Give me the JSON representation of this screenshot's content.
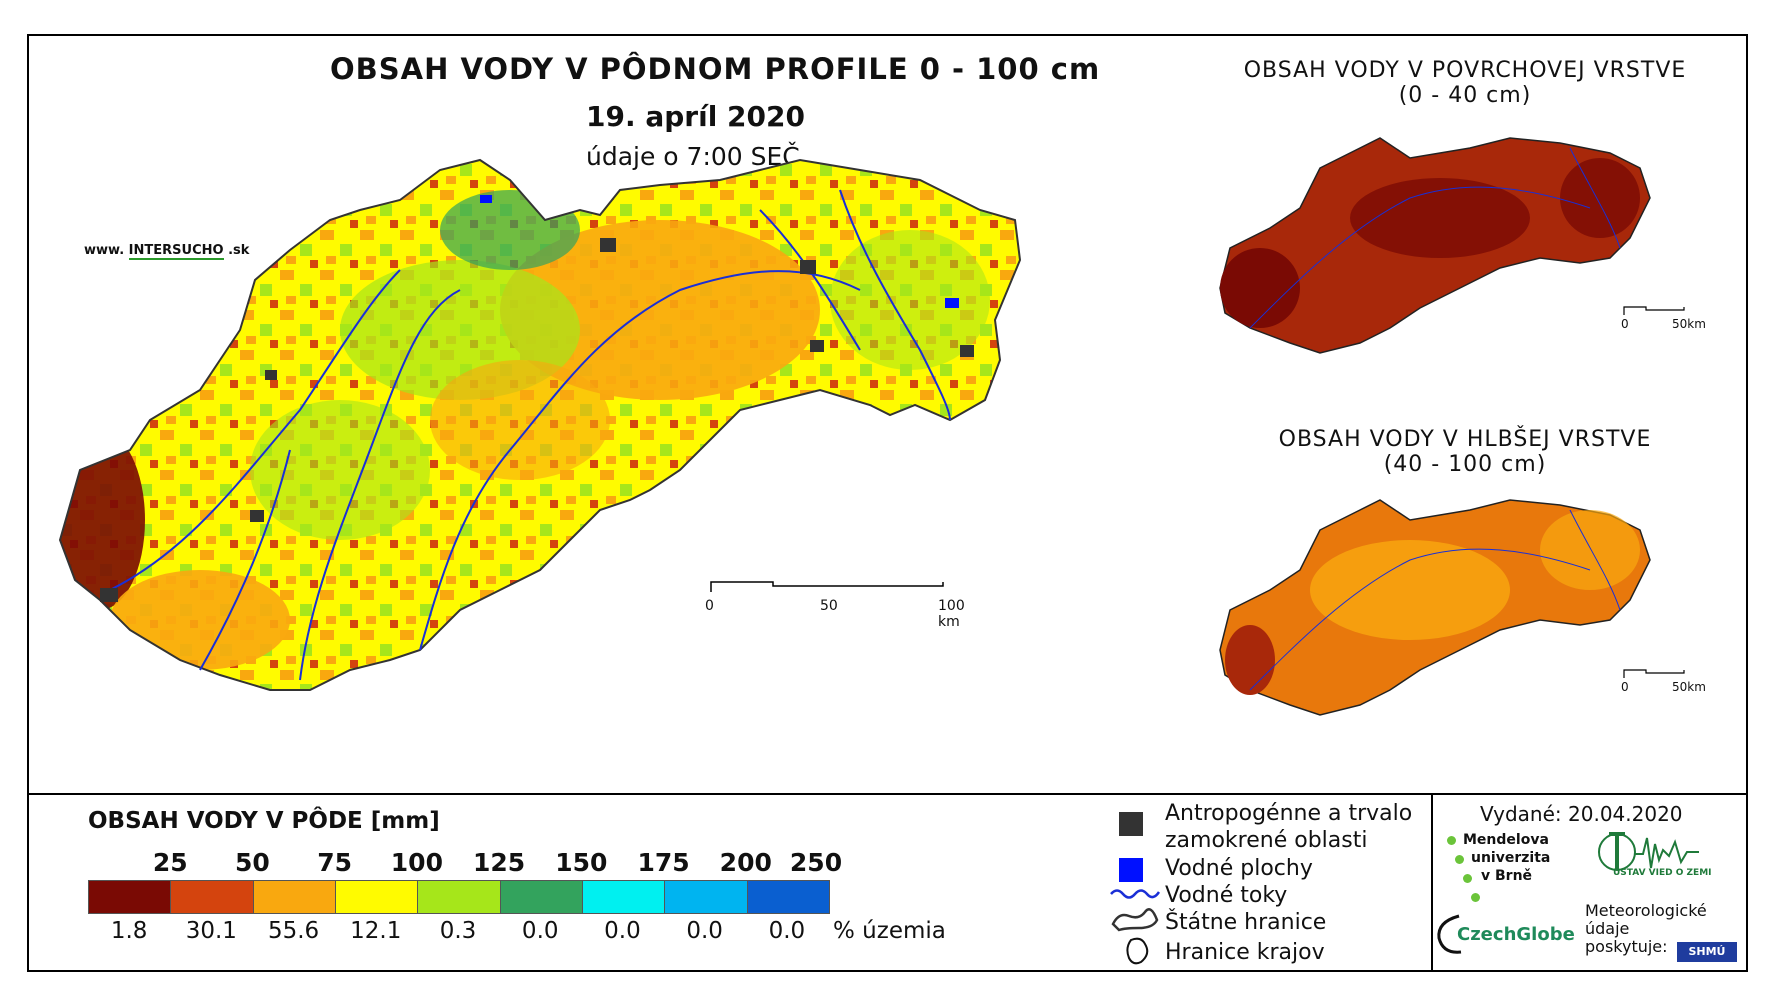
{
  "header": {
    "title": "OBSAH VODY V PÔDNOM PROFILE 0 - 100 cm",
    "date": "19. apríl 2020",
    "time": "údaje o 7:00 SEČ",
    "website_prefix": "www.",
    "website_brand_a": "INTER",
    "website_brand_b": "SUCHO",
    "website_suffix": ".sk"
  },
  "main_map": {
    "scale": {
      "tick0": "0",
      "tick1": "50",
      "tick2": "100 km"
    }
  },
  "surface_map": {
    "title_line1": "OBSAH VODY V POVRCHOVEJ VRSTVE",
    "title_line2": "(0 - 40 cm)",
    "scale": {
      "tick0": "0",
      "tick1": "50km"
    }
  },
  "deep_map": {
    "title_line1": "OBSAH VODY V HLBŠEJ VRSTVE",
    "title_line2": "(40 - 100 cm)",
    "scale": {
      "tick0": "0",
      "tick1": "50km"
    }
  },
  "legend": {
    "title": "OBSAH VODY V PÔDE [mm]",
    "thresholds": [
      "25",
      "50",
      "75",
      "100",
      "125",
      "150",
      "175",
      "200",
      "250"
    ],
    "colors": [
      "#7a0a04",
      "#d4440e",
      "#f9a80f",
      "#fffb00",
      "#a6e61a",
      "#33a35d",
      "#00f0f0",
      "#00b4f0",
      "#0a5fd0"
    ],
    "percents": [
      "1.8",
      "30.1",
      "55.6",
      "12.1",
      "0.3",
      "0.0",
      "0.0",
      "0.0",
      "0.0"
    ],
    "percent_unit": "% územia"
  },
  "map_key": {
    "anthropogenic_line1": "Antropogénne a trvalo",
    "anthropogenic_line2": "zamokrené oblasti",
    "water_bodies": "Vodné plochy",
    "rivers": "Vodné toky",
    "state_border": "Štátne hranice",
    "region_border": "Hranice krajov",
    "colors": {
      "anthropogenic": "#333333",
      "water": "#0010ff",
      "river": "#1a2fd6"
    }
  },
  "credits": {
    "issued": "Vydané: 20.04.2020",
    "mendel_line1": "Mendelova",
    "mendel_line2": "univerzita",
    "mendel_line3": "v Brně",
    "ustav": "ÚSTAV VIED O ZEMI",
    "czechglobe": "CzechGlobe",
    "meteo_line1": "Meteorologické",
    "meteo_line2": "údaje",
    "meteo_line3": "poskytuje:",
    "shmu": "SHMÚ"
  }
}
